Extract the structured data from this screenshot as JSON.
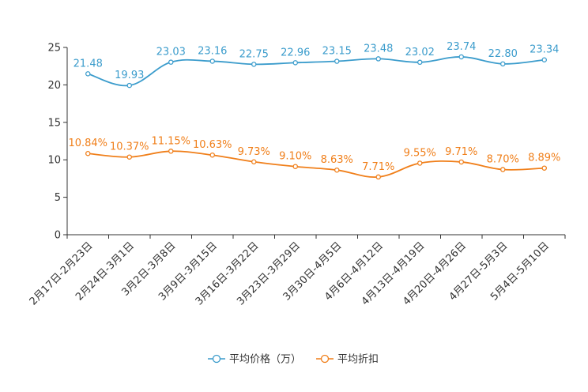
{
  "chart_data": {
    "type": "line",
    "title": "",
    "xlabel": "",
    "ylabel": "",
    "ylim": [
      0,
      25
    ],
    "yticks": [
      0,
      5,
      10,
      15,
      20,
      25
    ],
    "categories": [
      "2月17日-2月23日",
      "2月24日-3月1日",
      "3月2日-3月8日",
      "3月9日-3月15日",
      "3月16日-3月22日",
      "3月23日-3月29日",
      "3月30日-4月5日",
      "4月6日-4月12日",
      "4月13日-4月19日",
      "4月20日-4月26日",
      "4月27日-5月3日",
      "5月4日-5月10日"
    ],
    "series": [
      {
        "name": "平均价格（万）",
        "color": "#3b9ccc",
        "values": [
          21.48,
          19.93,
          23.03,
          23.16,
          22.75,
          22.96,
          23.15,
          23.48,
          23.02,
          23.74,
          22.8,
          23.34
        ],
        "labels": [
          "21.48",
          "19.93",
          "23.03",
          "23.16",
          "22.75",
          "22.96",
          "23.15",
          "23.48",
          "23.02",
          "23.74",
          "22.80",
          "23.34"
        ]
      },
      {
        "name": "平均折扣",
        "color": "#f07f1a",
        "values": [
          10.84,
          10.37,
          11.15,
          10.63,
          9.73,
          9.1,
          8.63,
          7.71,
          9.55,
          9.71,
          8.7,
          8.89
        ],
        "labels": [
          "10.84%",
          "10.37%",
          "11.15%",
          "10.63%",
          "9.73%",
          "9.10%",
          "8.63%",
          "7.71%",
          "9.55%",
          "9.71%",
          "8.70%",
          "8.89%"
        ]
      }
    ],
    "legend": "bottom-center",
    "grid": false
  }
}
